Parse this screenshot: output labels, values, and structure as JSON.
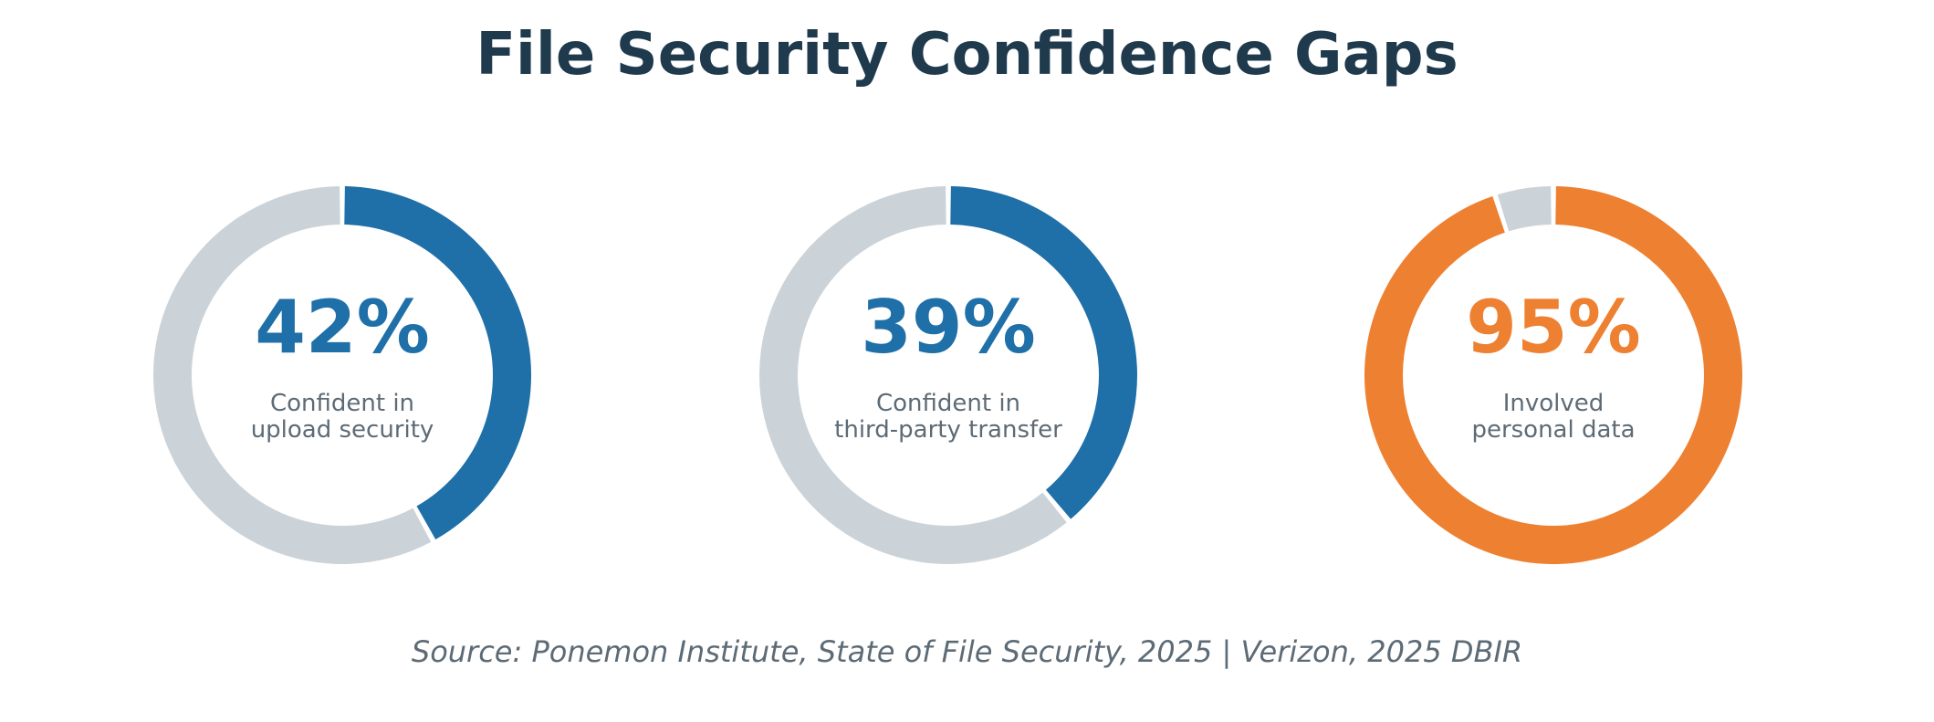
{
  "title": "File Security Confidence Gaps",
  "source": "Source: Ponemon Institute, State of File Security, 2025  |  Verizon, 2025 DBIR",
  "colors": {
    "title": "#1f3a4d",
    "track": "#cbd3d9",
    "blue": "#1f6fa8",
    "orange": "#ee8031",
    "label": "#5d6b76"
  },
  "chart_data": [
    {
      "type": "pie",
      "value": 42,
      "remainder": 58,
      "value_text": "42%",
      "label_lines": [
        "Confident in",
        "upload security"
      ],
      "color": "#1f6fa8"
    },
    {
      "type": "pie",
      "value": 39,
      "remainder": 61,
      "value_text": "39%",
      "label_lines": [
        "Confident in",
        "third-party transfer"
      ],
      "color": "#1f6fa8"
    },
    {
      "type": "pie",
      "value": 95,
      "remainder": 5,
      "value_text": "95%",
      "label_lines": [
        "Involved",
        "personal data"
      ],
      "color": "#ee8031"
    }
  ]
}
